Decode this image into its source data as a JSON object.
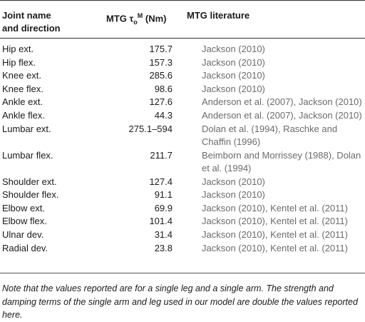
{
  "headers": {
    "col1_line1": "Joint name",
    "col1_line2": "and direction",
    "col2_prefix": "MTG τ",
    "col2_sub": "o",
    "col2_sup": "M",
    "col2_suffix": " (Nm)",
    "col3": "MTG literature"
  },
  "rows": [
    {
      "name": "Hip ext.",
      "value": "175.7",
      "lit": "Jackson (2010)"
    },
    {
      "name": "Hip flex.",
      "value": "157.3",
      "lit": "Jackson (2010)"
    },
    {
      "name": "Knee ext.",
      "value": "285.6",
      "lit": "Jackson (2010)"
    },
    {
      "name": "Knee flex.",
      "value": "98.6",
      "lit": "Jackson (2010)"
    },
    {
      "name": "Ankle ext.",
      "value": "127.6",
      "lit": "Anderson et al. (2007), Jackson (2010)"
    },
    {
      "name": "Ankle flex.",
      "value": "44.3",
      "lit": "Anderson et al. (2007), Jackson (2010)"
    },
    {
      "name": "Lumbar ext.",
      "value": "275.1–594",
      "lit": "Dolan et al. (1994), Raschke and",
      "lit2": "Chaffin (1996)"
    },
    {
      "name": "Lumbar flex.",
      "value": "211.7",
      "lit": "Beimborn and Morrissey (1988), Dolan",
      "lit2": "et al. (1994)"
    },
    {
      "name": "Shoulder ext.",
      "value": "127.4",
      "lit": "Jackson (2010)"
    },
    {
      "name": "Shoulder flex.",
      "value": "91.1",
      "lit": "Jackson (2010)"
    },
    {
      "name": "Elbow ext.",
      "value": "69.9",
      "lit": "Jackson (2010), Kentel et al. (2011)"
    },
    {
      "name": "Elbow flex.",
      "value": "101.4",
      "lit": "Jackson (2010), Kentel et al. (2011)"
    },
    {
      "name": "Ulnar dev.",
      "value": "31.4",
      "lit": "Jackson (2010), Kentel et al. (2011)"
    },
    {
      "name": "Radial dev.",
      "value": "23.8",
      "lit": "Jackson (2010), Kentel et al. (2011)"
    }
  ],
  "note": "Note that the values reported are for a single leg and a single arm. The strength and damping terms of the single arm and leg used in our model are double the values reported here."
}
